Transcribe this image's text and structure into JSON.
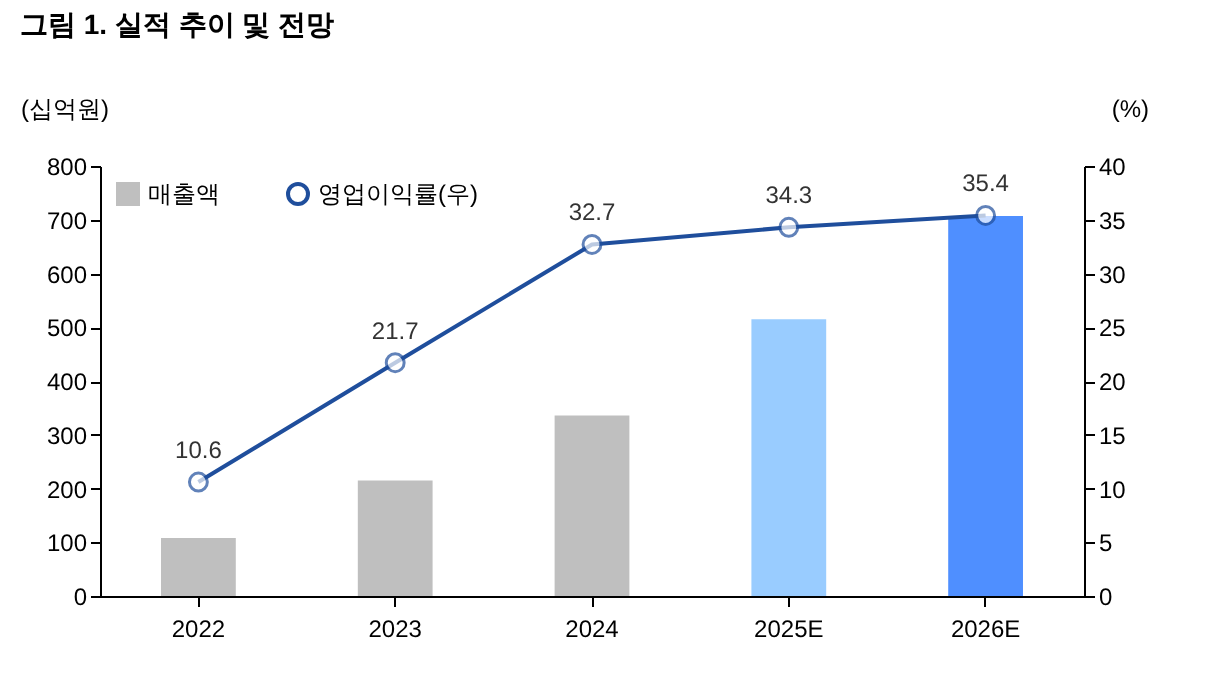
{
  "chart_data": {
    "type": "bar",
    "title": "그림 1. 실적 추이 및 전망",
    "ylabel": "(십억원)",
    "y2label": "(%)",
    "categories": [
      "2022",
      "2023",
      "2024",
      "2025E",
      "2026E"
    ],
    "series": [
      {
        "name": "매출액",
        "color": "#bfbfbf",
        "colors": [
          "#bfbfbf",
          "#bfbfbf",
          "#bfbfbf",
          "#99ccff",
          "#4f8fff"
        ],
        "values": [
          108,
          215,
          336,
          515,
          707
        ]
      },
      {
        "name": "영업이익률(우)",
        "type": "line",
        "axis": "y2",
        "color": "#1f4e9c",
        "marker": "circle",
        "values": [
          10.6,
          21.7,
          32.7,
          34.3,
          35.4
        ],
        "value_labels": [
          "10.6",
          "21.7",
          "32.7",
          "34.3",
          "35.4"
        ]
      }
    ],
    "ylim": [
      0,
      800
    ],
    "yticks": [
      0,
      100,
      200,
      300,
      400,
      500,
      600,
      700,
      800
    ],
    "y2lim": [
      0,
      40
    ],
    "y2ticks": [
      0,
      5,
      10,
      15,
      20,
      25,
      30,
      35,
      40
    ],
    "grid": false,
    "legend": "top left"
  }
}
